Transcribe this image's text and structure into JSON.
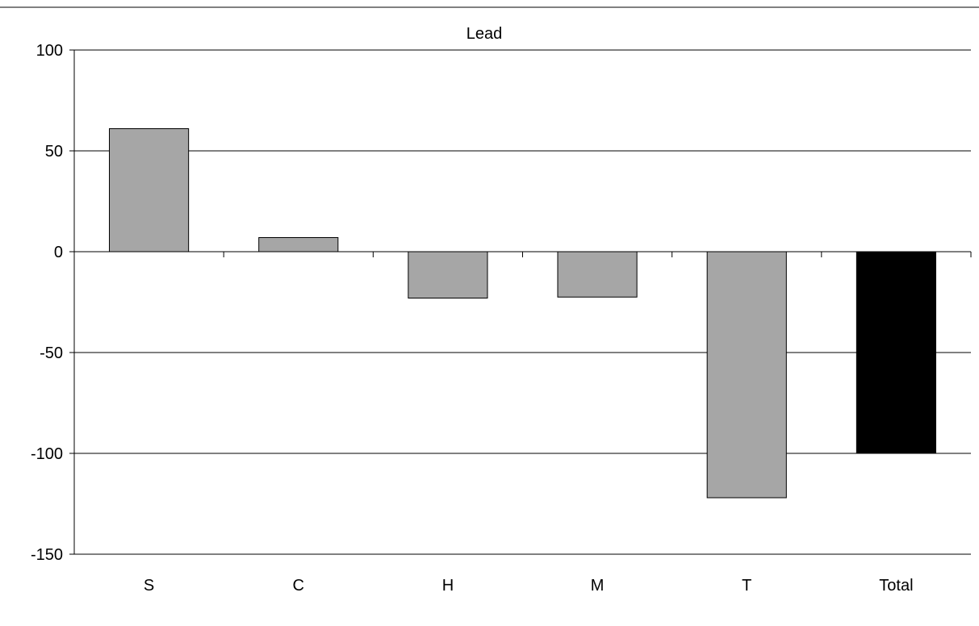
{
  "chart_data": {
    "type": "bar",
    "title": "Lead",
    "xlabel": "",
    "ylabel": "",
    "categories": [
      "S",
      "C",
      "H",
      "M",
      "T",
      "Total"
    ],
    "values": [
      61,
      7,
      -23,
      -22.5,
      -122,
      -100
    ],
    "ylim": [
      -150,
      100
    ],
    "yticks": [
      100,
      50,
      0,
      -50,
      -100,
      -150
    ],
    "grid": true,
    "legend": "none",
    "colors": {
      "bar": "#a6a6a6",
      "total_bar": "#000000",
      "gridline": "#000000",
      "axis": "#000000",
      "background": "#ffffff"
    }
  }
}
